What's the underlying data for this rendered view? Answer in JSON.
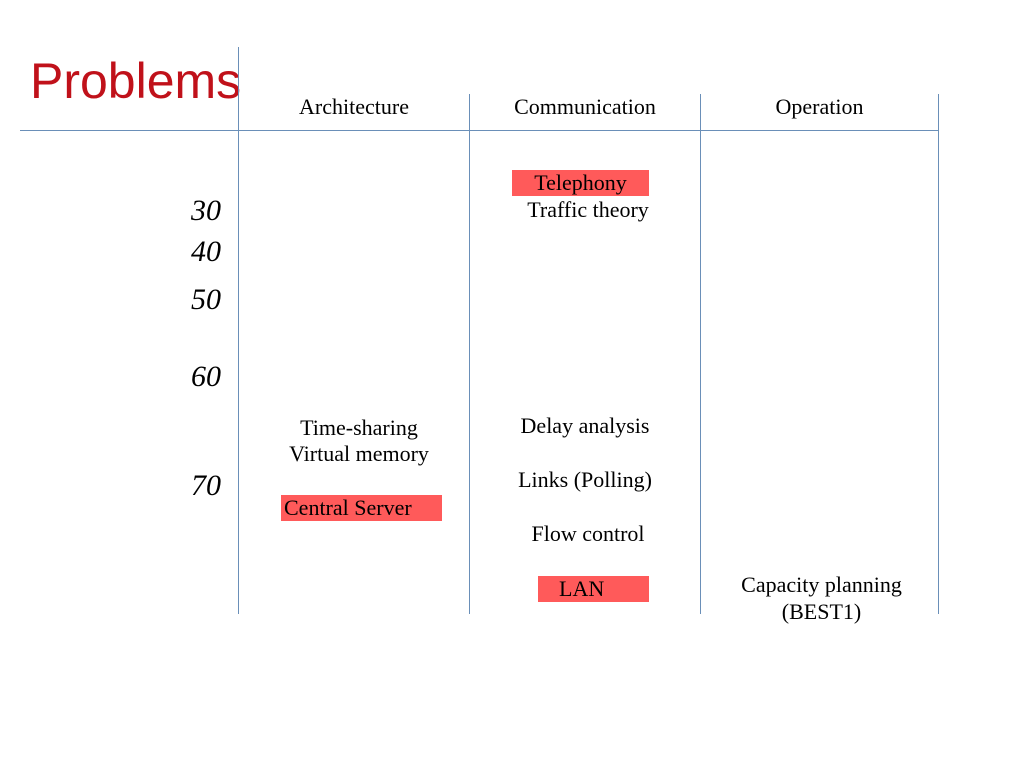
{
  "slide": {
    "title": "Problems"
  },
  "colors": {
    "title": "#c0111a",
    "grid_lines": "#6a8fb8",
    "highlight": "#ff5a5a"
  },
  "columns": {
    "architecture": "Architecture",
    "communication": "Communication",
    "operation": "Operation"
  },
  "years": [
    "30",
    "40",
    "50",
    "60",
    "70"
  ],
  "entries": {
    "telephony": "Telephony",
    "traffic_theory": "Traffic theory",
    "time_sharing": "Time-sharing",
    "virtual_memory": "Virtual memory",
    "central_server": "Central Server",
    "delay_analysis": "Delay analysis",
    "links_polling": "Links (Polling)",
    "flow_control": "Flow control",
    "lan": "LAN",
    "capacity_planning": "Capacity planning",
    "best1": "(BEST1)"
  },
  "highlighted": [
    "Telephony",
    "Central Server",
    "LAN"
  ]
}
